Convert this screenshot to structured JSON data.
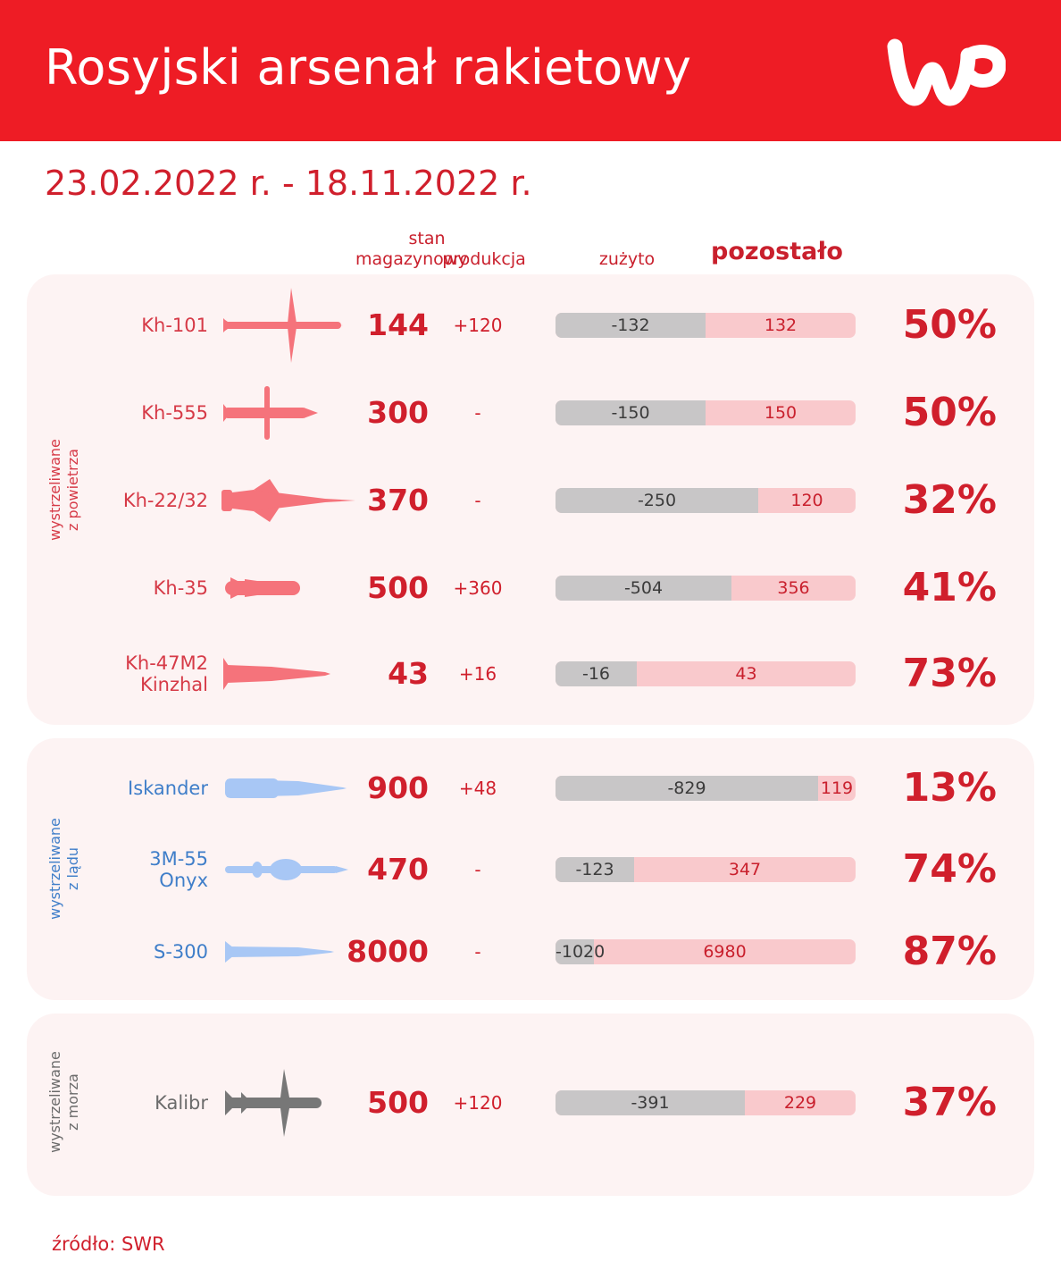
{
  "header": {
    "title": "Rosyjski arsenał rakietowy",
    "logo_label": "WP",
    "accent_color": "#ee1c25"
  },
  "date_range": "23.02.2022 r. - 18.11.2022 r.",
  "columns": {
    "stock_line1": "stan",
    "stock_line2": "magazynowy",
    "production": "produkcja",
    "used": "zużyto",
    "remaining": "pozostało"
  },
  "source": "źródło: SWR",
  "colors": {
    "air": "#f5737b",
    "land": "#a8c7f5",
    "sea": "#777777",
    "air_text": "#d63a47",
    "land_text": "#3f7ec9",
    "sea_text": "#6b6b6b",
    "used_bar": "#c8c6c7",
    "remaining_bar": "#f9c9cc"
  },
  "chart_data": {
    "type": "bar",
    "stacked": true,
    "title": "Rosyjski arsenał rakietowy",
    "subtitle": "23.02.2022 r. - 18.11.2022 r.",
    "series": [
      {
        "name": "zużyto"
      },
      {
        "name": "pozostało"
      }
    ],
    "groups": [
      {
        "label_line1": "wystrzeliwane",
        "label_line2": "z powietrza",
        "color_key": "air",
        "rows": [
          {
            "name_line1": "Kh-101",
            "name_line2": "",
            "icon": "kh-101-missile-icon",
            "stock": "144",
            "production": "+120",
            "used": -132,
            "remaining": 132,
            "percent": "50%"
          },
          {
            "name_line1": "Kh-555",
            "name_line2": "",
            "icon": "kh-555-missile-icon",
            "stock": "300",
            "production": "-",
            "used": -150,
            "remaining": 150,
            "percent": "50%"
          },
          {
            "name_line1": "Kh-22/32",
            "name_line2": "",
            "icon": "kh-22-missile-icon",
            "stock": "370",
            "production": "-",
            "used": -250,
            "remaining": 120,
            "percent": "32%"
          },
          {
            "name_line1": "Kh-35",
            "name_line2": "",
            "icon": "kh-35-missile-icon",
            "stock": "500",
            "production": "+360",
            "used": -504,
            "remaining": 356,
            "percent": "41%"
          },
          {
            "name_line1": "Kh-47M2",
            "name_line2": "Kinzhal",
            "icon": "kinzhal-missile-icon",
            "stock": "43",
            "production": "+16",
            "used": -16,
            "remaining": 43,
            "percent": "73%"
          }
        ]
      },
      {
        "label_line1": "wystrzeliwane",
        "label_line2": "z lądu",
        "color_key": "land",
        "rows": [
          {
            "name_line1": "Iskander",
            "name_line2": "",
            "icon": "iskander-missile-icon",
            "stock": "900",
            "production": "+48",
            "used": -829,
            "remaining": 119,
            "percent": "13%"
          },
          {
            "name_line1": "3M-55",
            "name_line2": "Onyx",
            "icon": "onyx-missile-icon",
            "stock": "470",
            "production": "-",
            "used": -123,
            "remaining": 347,
            "percent": "74%"
          },
          {
            "name_line1": "S-300",
            "name_line2": "",
            "icon": "s-300-missile-icon",
            "stock": "8000",
            "production": "-",
            "used": -1020,
            "remaining": 6980,
            "percent": "87%"
          }
        ]
      },
      {
        "label_line1": "wystrzeliwane",
        "label_line2": "z morza",
        "color_key": "sea",
        "rows": [
          {
            "name_line1": "Kalibr",
            "name_line2": "",
            "icon": "kalibr-missile-icon",
            "stock": "500",
            "production": "+120",
            "used": -391,
            "remaining": 229,
            "percent": "37%"
          }
        ]
      }
    ]
  }
}
